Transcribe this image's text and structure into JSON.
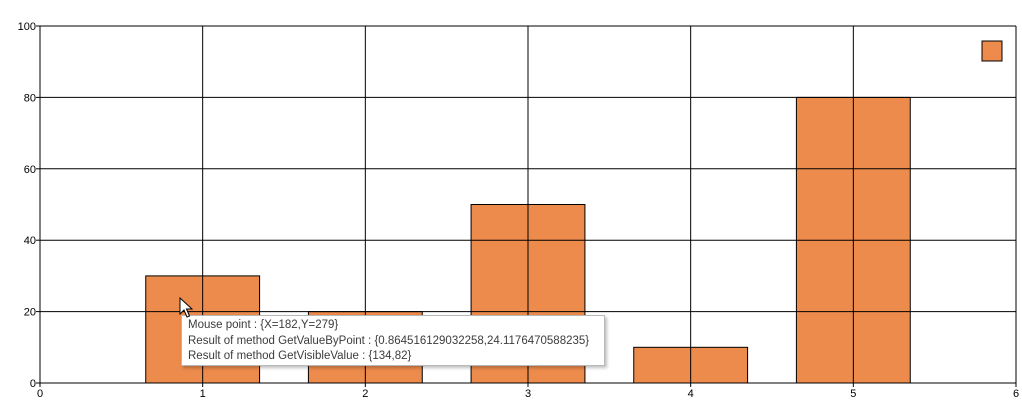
{
  "chart_data": {
    "type": "bar",
    "categories": [
      1,
      2,
      3,
      4,
      5
    ],
    "values": [
      30,
      20,
      50,
      10,
      80
    ],
    "bar_width": 0.7,
    "xlim": [
      0,
      6
    ],
    "ylim": [
      0,
      100
    ],
    "x_ticks": [
      0,
      1,
      2,
      3,
      4,
      5,
      6
    ],
    "y_ticks": [
      0,
      20,
      40,
      60,
      80,
      100
    ],
    "grid": true,
    "legend": "top-right",
    "bar_color": "#ED8B4C",
    "bar_outline": "#000000"
  },
  "tooltip": {
    "lines": [
      "Mouse point : {X=182,Y=279}",
      "Result of method GetValueByPoint : {0.864516129032258,24.1176470588235}",
      "Result of method GetVisibleValue : {134,82}"
    ]
  },
  "cursor_icon": "arrow-cursor-icon"
}
